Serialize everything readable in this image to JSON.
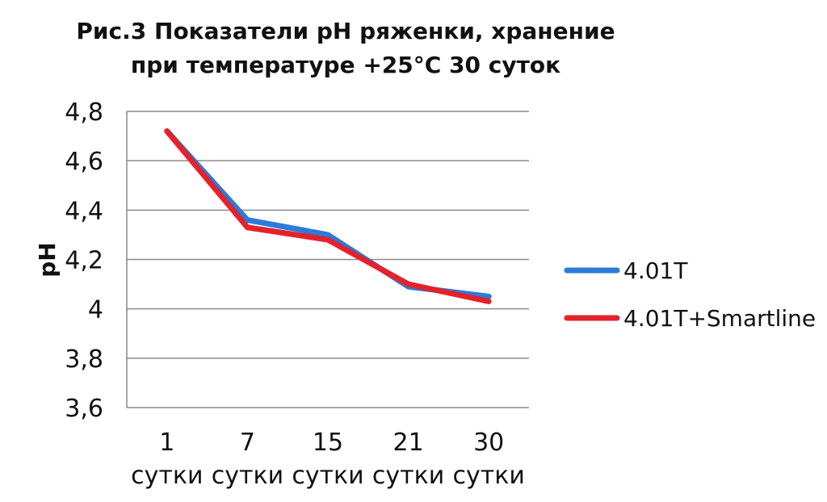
{
  "chart_data": {
    "type": "line",
    "title_lines": [
      "Рис.3 Показатели pH ряженки, хранение",
      "при температуре +25°C 30 суток"
    ],
    "ylabel": "pH",
    "xlabel": "",
    "categories": [
      [
        "1",
        "сутки"
      ],
      [
        "7",
        "сутки"
      ],
      [
        "15",
        "сутки"
      ],
      [
        "21",
        "сутки"
      ],
      [
        "30",
        "сутки"
      ]
    ],
    "ylim": [
      3.6,
      4.8
    ],
    "yticks": [
      3.6,
      3.8,
      4.0,
      4.2,
      4.4,
      4.6,
      4.8
    ],
    "ytick_labels": [
      "3,6",
      "3,8",
      "4",
      "4,2",
      "4,4",
      "4,6",
      "4,8"
    ],
    "grid": true,
    "legend_position": "right",
    "series": [
      {
        "name": "4.01T",
        "color": "#2B7BDB",
        "values": [
          4.72,
          4.36,
          4.3,
          4.09,
          4.05
        ]
      },
      {
        "name": "4.01T+Smartline",
        "color": "#E4222B",
        "values": [
          4.72,
          4.33,
          4.28,
          4.1,
          4.03
        ]
      }
    ]
  }
}
